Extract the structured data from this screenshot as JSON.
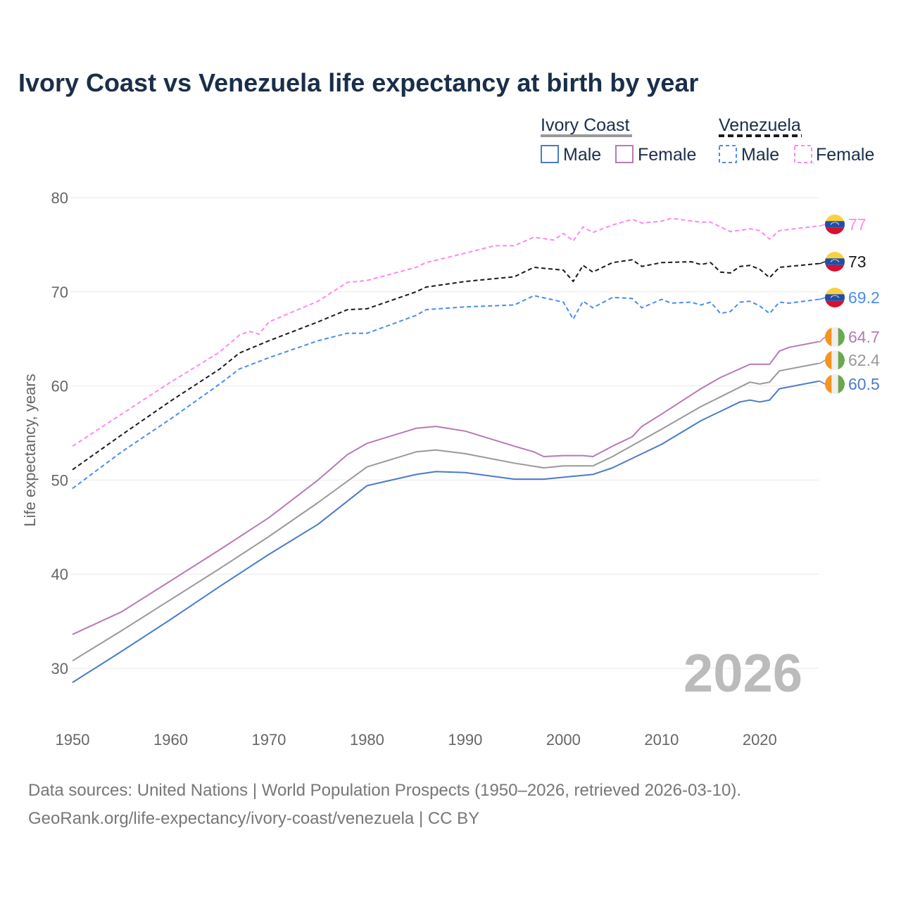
{
  "chart_data": {
    "type": "line",
    "title": "Ivory Coast vs Venezuela life expectancy at birth by year",
    "xlabel": "",
    "ylabel": "Life expectancy, years",
    "xlim": [
      1950,
      2026
    ],
    "ylim": [
      25,
      82
    ],
    "x_ticks": [
      "1950",
      "1960",
      "1970",
      "1980",
      "1990",
      "2000",
      "2010",
      "2020"
    ],
    "y_ticks": [
      "30",
      "40",
      "50",
      "60",
      "70",
      "80"
    ],
    "grid": true,
    "year_label": "2026",
    "legend": {
      "placement": "top-right",
      "groups": [
        {
          "name": "Ivory Coast",
          "items": [
            "Male",
            "Female"
          ]
        },
        {
          "name": "Venezuela",
          "items": [
            "Male",
            "Female"
          ]
        }
      ]
    },
    "series": [
      {
        "name": "Venezuela Female",
        "country": "Venezuela",
        "color": "#ff88ee",
        "dashed": true,
        "end_label": "77",
        "x": [
          1950,
          1955,
          1960,
          1965,
          1967,
          1968,
          1969,
          1970,
          1975,
          1978,
          1980,
          1985,
          1986,
          1990,
          1993,
          1995,
          1997,
          1999,
          2000,
          2001,
          2002,
          2003,
          2005,
          2007,
          2008,
          2010,
          2011,
          2014,
          2015,
          2017,
          2019,
          2020,
          2021,
          2022,
          2026
        ],
        "y": [
          53.6,
          57,
          60.4,
          63.6,
          65.4,
          65.8,
          65.5,
          66.8,
          69,
          71,
          71.2,
          72.6,
          73.1,
          74.1,
          74.9,
          74.9,
          75.8,
          75.5,
          76.2,
          75.4,
          76.9,
          76.3,
          77.1,
          77.7,
          77.3,
          77.5,
          77.8,
          77.4,
          77.4,
          76.4,
          76.7,
          76.5,
          75.6,
          76.5,
          77
        ]
      },
      {
        "name": "Venezuela",
        "country": "Venezuela",
        "color": "#1a1a1a",
        "dashed": true,
        "end_label": "73",
        "x": [
          1950,
          1955,
          1960,
          1965,
          1967,
          1970,
          1975,
          1978,
          1980,
          1985,
          1986,
          1990,
          1995,
          1997,
          2000,
          2001,
          2002,
          2003,
          2005,
          2007,
          2008,
          2010,
          2013,
          2014,
          2015,
          2016,
          2017,
          2018,
          2019,
          2020,
          2021,
          2022,
          2026
        ],
        "y": [
          51.1,
          54.8,
          58.4,
          61.8,
          63.5,
          64.8,
          66.8,
          68.1,
          68.2,
          70,
          70.5,
          71.1,
          71.6,
          72.6,
          72.3,
          71.1,
          72.8,
          72.1,
          73.1,
          73.4,
          72.7,
          73.1,
          73.2,
          72.9,
          73.1,
          72.1,
          72,
          72.7,
          72.8,
          72.4,
          71.5,
          72.6,
          73
        ]
      },
      {
        "name": "Venezuela Male",
        "country": "Venezuela",
        "color": "#4a8cf0",
        "dashed": true,
        "end_label": "69.2",
        "x": [
          1950,
          1955,
          1960,
          1965,
          1967,
          1970,
          1975,
          1978,
          1980,
          1985,
          1986,
          1990,
          1995,
          1997,
          2000,
          2001,
          2002,
          2003,
          2005,
          2007,
          2008,
          2010,
          2011,
          2013,
          2014,
          2015,
          2016,
          2017,
          2018,
          2019,
          2020,
          2021,
          2022,
          2023,
          2026
        ],
        "y": [
          49.1,
          53,
          56.5,
          60.2,
          61.8,
          63,
          64.8,
          65.6,
          65.6,
          67.5,
          68.1,
          68.4,
          68.6,
          69.6,
          68.9,
          67.1,
          69,
          68.3,
          69.4,
          69.3,
          68.3,
          69.2,
          68.8,
          68.9,
          68.6,
          68.9,
          67.7,
          67.9,
          68.9,
          69,
          68.5,
          67.7,
          68.9,
          68.8,
          69.2
        ]
      },
      {
        "name": "Ivory Coast Female",
        "country": "Ivory Coast",
        "color": "#b77ab5",
        "dashed": false,
        "end_label": "64.7",
        "x": [
          1950,
          1955,
          1960,
          1965,
          1970,
          1975,
          1978,
          1980,
          1985,
          1987,
          1990,
          1995,
          1997,
          1998,
          2000,
          2002,
          2003,
          2005,
          2007,
          2008,
          2010,
          2014,
          2016,
          2019,
          2021,
          2022,
          2023,
          2026
        ],
        "y": [
          33.6,
          36,
          39.3,
          42.6,
          46,
          50,
          52.7,
          53.9,
          55.5,
          55.7,
          55.2,
          53.6,
          53,
          52.5,
          52.6,
          52.6,
          52.5,
          53.6,
          54.6,
          55.7,
          57,
          59.7,
          60.9,
          62.3,
          62.3,
          63.7,
          64.1,
          64.7
        ]
      },
      {
        "name": "Ivory Coast",
        "country": "Ivory Coast",
        "color": "#999999",
        "dashed": false,
        "end_label": "62.4",
        "x": [
          1950,
          1955,
          1960,
          1965,
          1970,
          1975,
          1980,
          1985,
          1987,
          1990,
          1995,
          1998,
          2000,
          2003,
          2005,
          2010,
          2014,
          2019,
          2020,
          2021,
          2022,
          2026
        ],
        "y": [
          30.8,
          34,
          37.3,
          40.6,
          44,
          47.6,
          51.4,
          53,
          53.2,
          52.8,
          51.8,
          51.3,
          51.5,
          51.5,
          52.5,
          55.4,
          57.8,
          60.4,
          60.2,
          60.4,
          61.6,
          62.4
        ]
      },
      {
        "name": "Ivory Coast Male",
        "country": "Ivory Coast",
        "color": "#4a7bcb",
        "dashed": false,
        "end_label": "60.5",
        "x": [
          1950,
          1955,
          1960,
          1965,
          1970,
          1975,
          1980,
          1985,
          1987,
          1990,
          1995,
          1998,
          2000,
          2003,
          2005,
          2010,
          2014,
          2018,
          2019,
          2020,
          2021,
          2022,
          2026
        ],
        "y": [
          28.5,
          31.8,
          35.2,
          38.7,
          42.1,
          45.3,
          49.4,
          50.6,
          50.9,
          50.8,
          50.1,
          50.1,
          50.3,
          50.6,
          51.3,
          53.8,
          56.3,
          58.3,
          58.5,
          58.3,
          58.5,
          59.7,
          60.5
        ]
      }
    ]
  },
  "footer": {
    "line1": "Data sources: United Nations | World Population Prospects (1950–2026, retrieved 2026-03-10).",
    "line2": "GeoRank.org/life-expectancy/ivory-coast/venezuela | CC BY"
  },
  "colors": {
    "title": "#1a2e4a",
    "axis_text": "#666666",
    "grid": "#e8e8e8",
    "year": "#bbbbbb"
  }
}
